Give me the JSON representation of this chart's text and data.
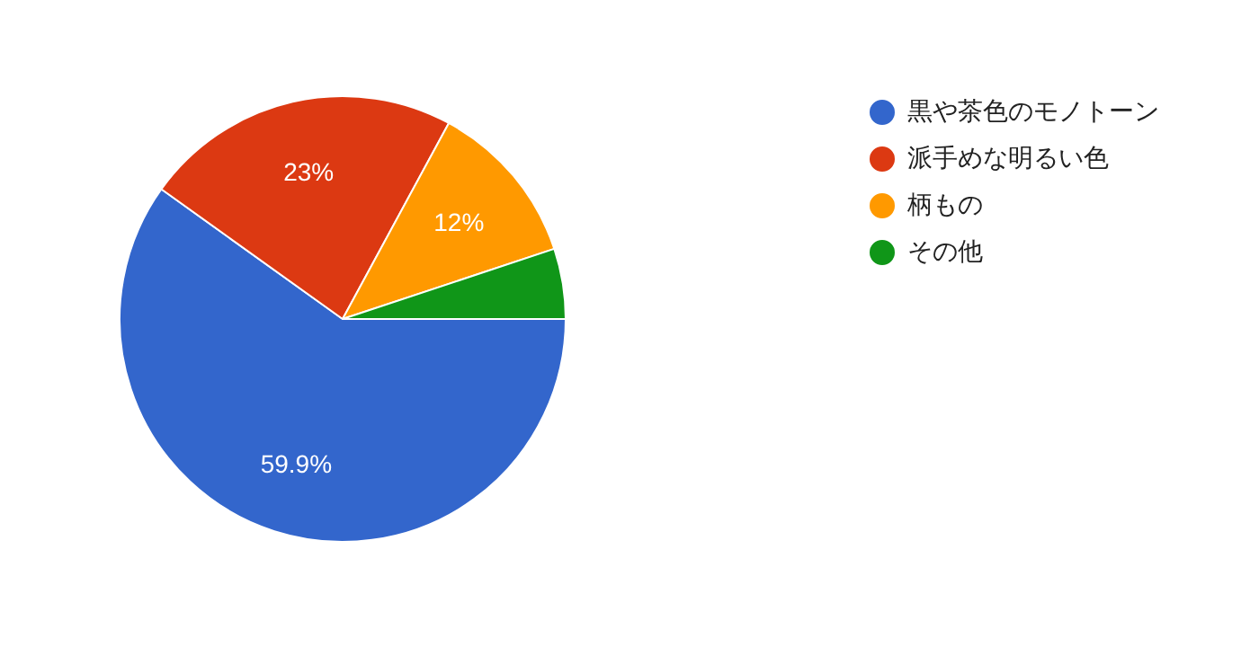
{
  "chart_data": {
    "type": "pie",
    "categories": [
      "黒や茶色のモノトーン",
      "派手めな明るい色",
      "柄もの",
      "その他"
    ],
    "values": [
      59.9,
      23,
      12,
      5.1
    ],
    "colors": [
      "#3366cc",
      "#dc3912",
      "#ff9900",
      "#109618"
    ],
    "value_labels": [
      "59.9%",
      "23%",
      "12%",
      null
    ],
    "legend": "right"
  }
}
